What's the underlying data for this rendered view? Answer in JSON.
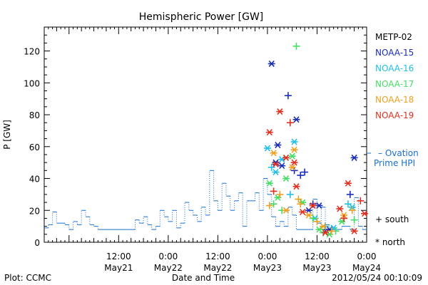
{
  "chart_data": {
    "type": "scatter",
    "title": "Hemispheric Power [GW]",
    "ylabel": "P [GW]",
    "xlabel": "Date and Time",
    "ylim": [
      0,
      135
    ],
    "xlim": [
      "2012-05-20T18:00",
      "2012-05-24T00:00"
    ],
    "y_ticks": [
      0,
      20,
      40,
      60,
      80,
      100,
      120
    ],
    "x_ticks": [
      {
        "time": "2012-05-21T12:00",
        "top": "12:00",
        "bottom": "May21"
      },
      {
        "time": "2012-05-22T00:00",
        "top": "0:00",
        "bottom": "May22"
      },
      {
        "time": "2012-05-22T12:00",
        "top": "12:00",
        "bottom": "May22"
      },
      {
        "time": "2012-05-23T00:00",
        "top": "0:00",
        "bottom": "May23"
      },
      {
        "time": "2012-05-23T12:00",
        "top": "12:00",
        "bottom": "May23"
      },
      {
        "time": "2012-05-24T00:00",
        "top": "0:00",
        "bottom": "May24"
      }
    ],
    "legend": [
      {
        "name": "METP-02",
        "color": "#000000"
      },
      {
        "name": "NOAA-15",
        "color": "#1a2db5"
      },
      {
        "name": "NOAA-16",
        "color": "#22c0e8"
      },
      {
        "name": "NOAA-17",
        "color": "#44dd66"
      },
      {
        "name": "NOAA-18",
        "color": "#f0a020"
      },
      {
        "name": "NOAA-19",
        "color": "#e03020"
      }
    ],
    "ovation": {
      "name": "Ovation Prime HPI",
      "color": "#1a6fd0",
      "points": [
        [
          "2012-05-20T18:00",
          9
        ],
        [
          "2012-05-20T19:00",
          11
        ],
        [
          "2012-05-20T20:00",
          19
        ],
        [
          "2012-05-20T21:00",
          12
        ],
        [
          "2012-05-20T23:00",
          11
        ],
        [
          "2012-05-21T00:00",
          8
        ],
        [
          "2012-05-21T01:00",
          13
        ],
        [
          "2012-05-21T02:00",
          11
        ],
        [
          "2012-05-21T03:00",
          20
        ],
        [
          "2012-05-21T04:00",
          16
        ],
        [
          "2012-05-21T05:00",
          11
        ],
        [
          "2012-05-21T06:00",
          10
        ],
        [
          "2012-05-21T07:00",
          8
        ],
        [
          "2012-05-21T15:00",
          8
        ],
        [
          "2012-05-21T16:00",
          14
        ],
        [
          "2012-05-21T17:00",
          12
        ],
        [
          "2012-05-21T18:00",
          16
        ],
        [
          "2012-05-21T19:00",
          11
        ],
        [
          "2012-05-21T20:00",
          8
        ],
        [
          "2012-05-21T21:00",
          10
        ],
        [
          "2012-05-21T22:00",
          20
        ],
        [
          "2012-05-21T23:00",
          16
        ],
        [
          "2012-05-22T00:00",
          13
        ],
        [
          "2012-05-22T01:00",
          20
        ],
        [
          "2012-05-22T02:00",
          9
        ],
        [
          "2012-05-22T03:00",
          12
        ],
        [
          "2012-05-22T04:00",
          25
        ],
        [
          "2012-05-22T05:00",
          20
        ],
        [
          "2012-05-22T06:00",
          17
        ],
        [
          "2012-05-22T07:00",
          13
        ],
        [
          "2012-05-22T08:00",
          22
        ],
        [
          "2012-05-22T09:00",
          17
        ],
        [
          "2012-05-22T10:00",
          45
        ],
        [
          "2012-05-22T11:00",
          26
        ],
        [
          "2012-05-22T12:00",
          20
        ],
        [
          "2012-05-22T13:00",
          37
        ],
        [
          "2012-05-22T14:00",
          29
        ],
        [
          "2012-05-22T15:00",
          20
        ],
        [
          "2012-05-22T16:00",
          26
        ],
        [
          "2012-05-22T17:00",
          31
        ],
        [
          "2012-05-22T18:00",
          10
        ],
        [
          "2012-05-22T19:00",
          26
        ],
        [
          "2012-05-22T20:00",
          26
        ],
        [
          "2012-05-22T21:00",
          31
        ],
        [
          "2012-05-22T22:00",
          20
        ],
        [
          "2012-05-22T23:00",
          40
        ],
        [
          "2012-05-23T00:00",
          30
        ],
        [
          "2012-05-23T01:00",
          16
        ],
        [
          "2012-05-23T02:00",
          10
        ],
        [
          "2012-05-23T03:00",
          13
        ],
        [
          "2012-05-23T04:00",
          10
        ],
        [
          "2012-05-23T05:00",
          22
        ],
        [
          "2012-05-23T06:00",
          17
        ],
        [
          "2012-05-23T07:00",
          8
        ],
        [
          "2012-05-23T10:00",
          8
        ],
        [
          "2012-05-23T11:00",
          27
        ],
        [
          "2012-05-23T12:00",
          12
        ],
        [
          "2012-05-23T13:00",
          22
        ],
        [
          "2012-05-23T14:00",
          11
        ],
        [
          "2012-05-23T15:00",
          8
        ],
        [
          "2012-05-23T17:00",
          8
        ],
        [
          "2012-05-23T18:00",
          10
        ],
        [
          "2012-05-23T19:00",
          10
        ],
        [
          "2012-05-23T20:00",
          8
        ],
        [
          "2012-05-23T21:00",
          28
        ],
        [
          "2012-05-23T22:00",
          10
        ],
        [
          "2012-05-23T23:00",
          8
        ],
        [
          "2012-05-24T00:00",
          8
        ]
      ]
    },
    "series": [
      {
        "name": "NOAA-15",
        "color": "#1a2db5",
        "points": [
          [
            "2012-05-23T01:00",
            112,
            "north"
          ],
          [
            "2012-05-23T02:00",
            50,
            "north"
          ],
          [
            "2012-05-23T02:30",
            61,
            "north"
          ],
          [
            "2012-05-23T03:30",
            48,
            "north"
          ],
          [
            "2012-05-23T05:00",
            92,
            "south"
          ],
          [
            "2012-05-23T06:30",
            45,
            "south"
          ],
          [
            "2012-05-23T07:00",
            77,
            "north"
          ],
          [
            "2012-05-23T08:00",
            42,
            "south"
          ],
          [
            "2012-05-23T09:00",
            44,
            "south"
          ],
          [
            "2012-05-23T10:00",
            20,
            "north"
          ],
          [
            "2012-05-23T11:00",
            24,
            "south"
          ],
          [
            "2012-05-23T12:30",
            23,
            "north"
          ],
          [
            "2012-05-23T14:00",
            8,
            "south"
          ],
          [
            "2012-05-23T15:00",
            8,
            "north"
          ],
          [
            "2012-05-23T20:00",
            30,
            "south"
          ],
          [
            "2012-05-23T21:00",
            53,
            "north"
          ]
        ]
      },
      {
        "name": "NOAA-16",
        "color": "#22c0e8",
        "points": [
          [
            "2012-05-23T00:00",
            59,
            "north"
          ],
          [
            "2012-05-23T01:00",
            47,
            "south"
          ],
          [
            "2012-05-23T02:00",
            44,
            "north"
          ],
          [
            "2012-05-23T03:30",
            52,
            "north"
          ],
          [
            "2012-05-23T05:30",
            30,
            "south"
          ],
          [
            "2012-05-23T06:30",
            63,
            "north"
          ],
          [
            "2012-05-23T11:30",
            15,
            "north"
          ],
          [
            "2012-05-23T14:00",
            10,
            "south"
          ],
          [
            "2012-05-23T16:00",
            9,
            "north"
          ],
          [
            "2012-05-23T19:30",
            24,
            "south"
          ],
          [
            "2012-05-23T20:30",
            22,
            "north"
          ]
        ]
      },
      {
        "name": "NOAA-17",
        "color": "#44dd66",
        "points": [
          [
            "2012-05-23T00:30",
            37,
            "north"
          ],
          [
            "2012-05-23T01:30",
            24,
            "south"
          ],
          [
            "2012-05-23T02:30",
            28,
            "north"
          ],
          [
            "2012-05-23T03:30",
            20,
            "south"
          ],
          [
            "2012-05-23T04:30",
            40,
            "north"
          ],
          [
            "2012-05-23T06:00",
            54,
            "north"
          ],
          [
            "2012-05-23T07:00",
            123,
            "south"
          ],
          [
            "2012-05-23T08:30",
            25,
            "north"
          ],
          [
            "2012-05-23T11:00",
            15,
            "south"
          ],
          [
            "2012-05-23T12:30",
            8,
            "north"
          ],
          [
            "2012-05-23T13:30",
            6,
            "south"
          ],
          [
            "2012-05-23T15:00",
            5,
            "north"
          ],
          [
            "2012-05-23T16:30",
            7,
            "south"
          ],
          [
            "2012-05-23T18:00",
            13,
            "north"
          ],
          [
            "2012-05-23T21:00",
            14,
            "south"
          ]
        ]
      },
      {
        "name": "NOAA-18",
        "color": "#f0a020",
        "points": [
          [
            "2012-05-23T00:30",
            23,
            "south"
          ],
          [
            "2012-05-23T01:30",
            56,
            "north"
          ],
          [
            "2012-05-23T03:00",
            30,
            "south"
          ],
          [
            "2012-05-23T04:30",
            20,
            "north"
          ],
          [
            "2012-05-23T06:00",
            47,
            "north"
          ],
          [
            "2012-05-23T06:30",
            58,
            "north"
          ],
          [
            "2012-05-23T07:30",
            27,
            "south"
          ],
          [
            "2012-05-23T08:00",
            24,
            "south"
          ],
          [
            "2012-05-23T10:00",
            17,
            "north"
          ],
          [
            "2012-05-23T12:00",
            13,
            "south"
          ],
          [
            "2012-05-23T13:30",
            10,
            "north"
          ],
          [
            "2012-05-23T15:30",
            7,
            "south"
          ],
          [
            "2012-05-23T18:30",
            17,
            "north"
          ],
          [
            "2012-05-23T20:30",
            20,
            "south"
          ]
        ]
      },
      {
        "name": "NOAA-19",
        "color": "#e03020",
        "points": [
          [
            "2012-05-23T00:30",
            69,
            "north"
          ],
          [
            "2012-05-23T01:30",
            32,
            "south"
          ],
          [
            "2012-05-23T02:00",
            49,
            "north"
          ],
          [
            "2012-05-23T03:00",
            82,
            "north"
          ],
          [
            "2012-05-23T04:30",
            53,
            "north"
          ],
          [
            "2012-05-23T05:30",
            75,
            "south"
          ],
          [
            "2012-05-23T06:30",
            50,
            "north"
          ],
          [
            "2012-05-23T07:00",
            35,
            "north"
          ],
          [
            "2012-05-23T08:30",
            19,
            "north"
          ],
          [
            "2012-05-23T11:00",
            23,
            "north"
          ],
          [
            "2012-05-23T14:00",
            6,
            "north"
          ],
          [
            "2012-05-23T17:30",
            21,
            "north"
          ],
          [
            "2012-05-23T18:30",
            15,
            "south"
          ],
          [
            "2012-05-23T19:30",
            37,
            "north"
          ],
          [
            "2012-05-23T21:00",
            7,
            "north"
          ],
          [
            "2012-05-23T22:30",
            26,
            "south"
          ],
          [
            "2012-05-23T23:30",
            18,
            "north"
          ]
        ]
      }
    ],
    "marker_legend": {
      "south": "+ south",
      "north": "* north"
    },
    "ovation_label_lines": [
      "– Ovation",
      "Prime HPI"
    ]
  },
  "footer": {
    "plot_credit": "Plot: CCMC",
    "timestamp": "2012/05/24 00:10:09"
  }
}
